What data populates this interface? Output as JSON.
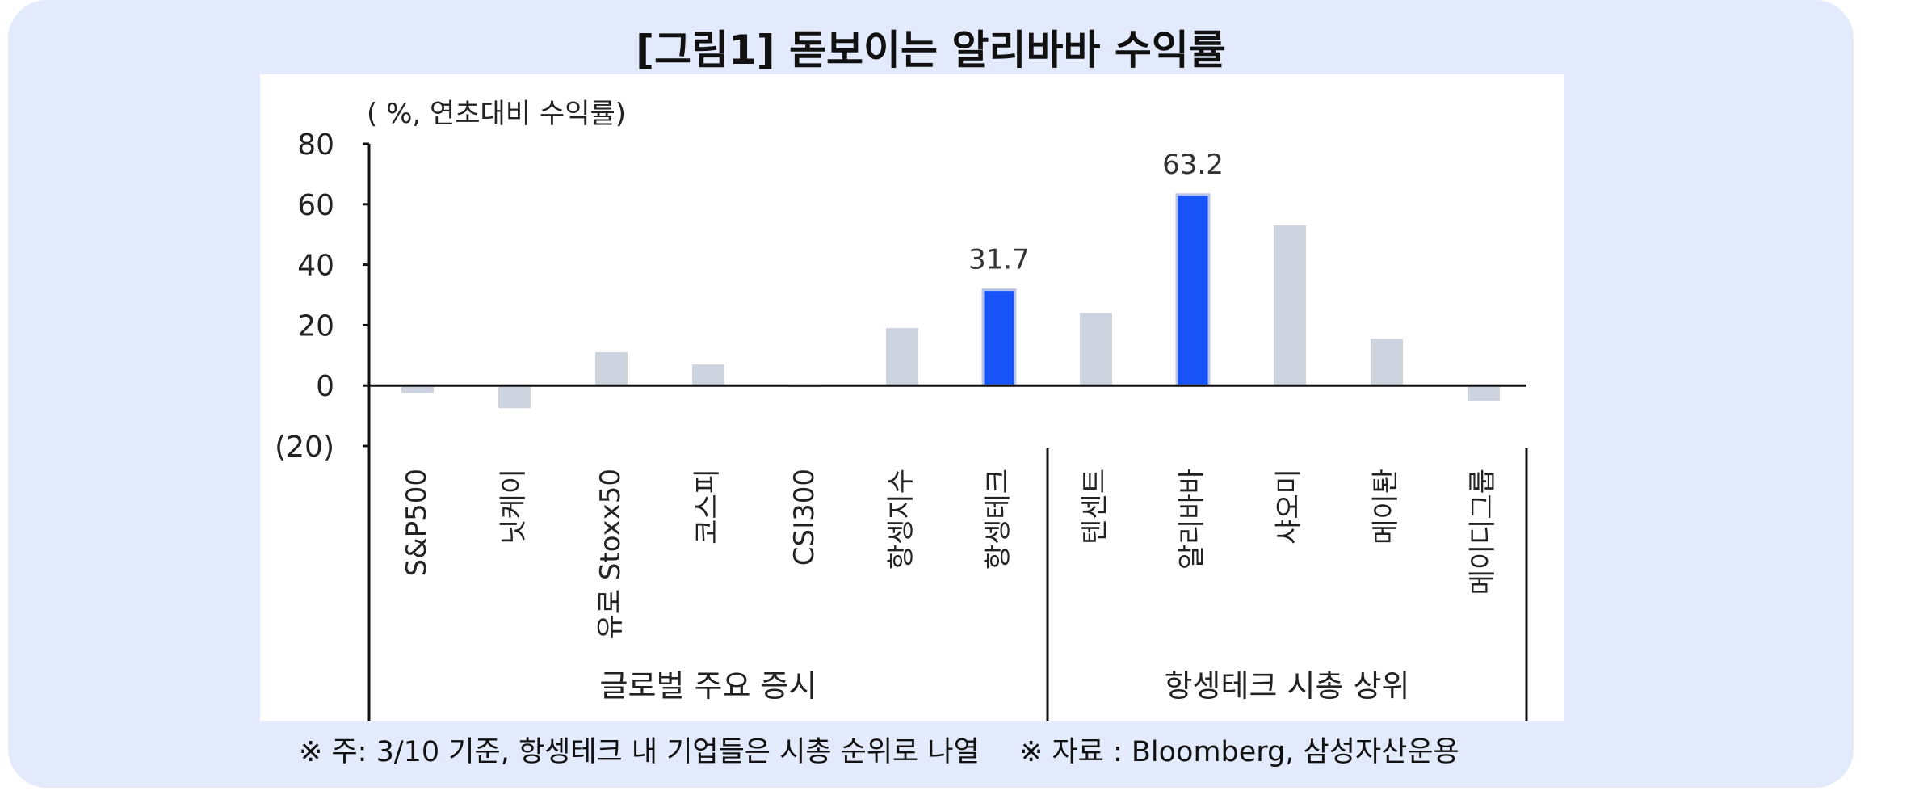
{
  "title": "[그림1] 돋보이는 알리바바 수익률",
  "chart_data": {
    "type": "bar",
    "ylabel": "( %, 연초대비 수익률)",
    "ylim": [
      -20,
      80
    ],
    "yticks": [
      80,
      60,
      40,
      20,
      0,
      -20
    ],
    "ytick_labels": [
      "80",
      "60",
      "40",
      "20",
      "0",
      "(20)"
    ],
    "categories": [
      "S&P500",
      "닛케이",
      "유로 Stoxx50",
      "코스피",
      "CSI300",
      "항셍지수",
      "항셍테크",
      "텐센트",
      "알리바바",
      "샤오미",
      "메이퇀",
      "메이디그룹"
    ],
    "values": [
      -2.5,
      -7.5,
      11,
      7,
      -0.5,
      19,
      31.7,
      24,
      63.2,
      53,
      15.5,
      -5
    ],
    "highlight": [
      false,
      false,
      false,
      false,
      false,
      false,
      true,
      false,
      true,
      false,
      false,
      false
    ],
    "data_labels": [
      "",
      "",
      "",
      "",
      "",
      "",
      "31.7",
      "",
      "63.2",
      "",
      "",
      ""
    ],
    "groups": [
      {
        "label": "글로벌 주요 증시",
        "start": 0,
        "end": 6
      },
      {
        "label": "항셍테크 시총 상위",
        "start": 7,
        "end": 11
      }
    ],
    "colors": {
      "normal": "#cdd3df",
      "highlight": "#1753f7",
      "highlight_edge": "#b8c4e8"
    }
  },
  "footnotes": {
    "note": "※ 주: 3/10 기준, 항셍테크 내 기업들은 시총 순위로 나열",
    "source": "※ 자료 : Bloomberg, 삼성자산운용"
  }
}
